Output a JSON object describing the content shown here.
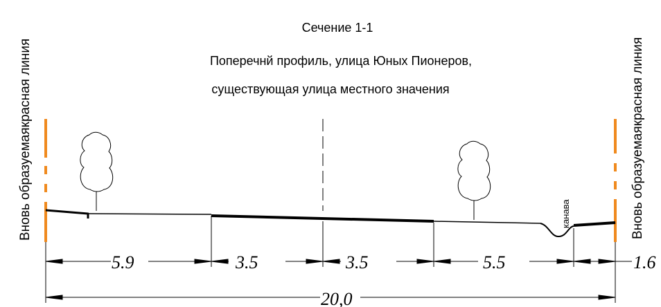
{
  "title": {
    "section": "Сечение 1-1",
    "line1": "Поперечнй профиль, улица Юных Пионеров,",
    "line2": "существующая  улица местного значения"
  },
  "left_red_line_label": "Вновь образуемаякрасная линия",
  "right_red_line_label": "Вновь образуемаякрасная линия",
  "ditch_label": "канава",
  "dimensions": {
    "d1": "5.9",
    "d2": "3.5",
    "d3": "3.5",
    "d4": "5.5",
    "d5": "1.6",
    "total": "20,0"
  },
  "colors": {
    "red_line": "#f08a1e",
    "ink": "#000000"
  }
}
